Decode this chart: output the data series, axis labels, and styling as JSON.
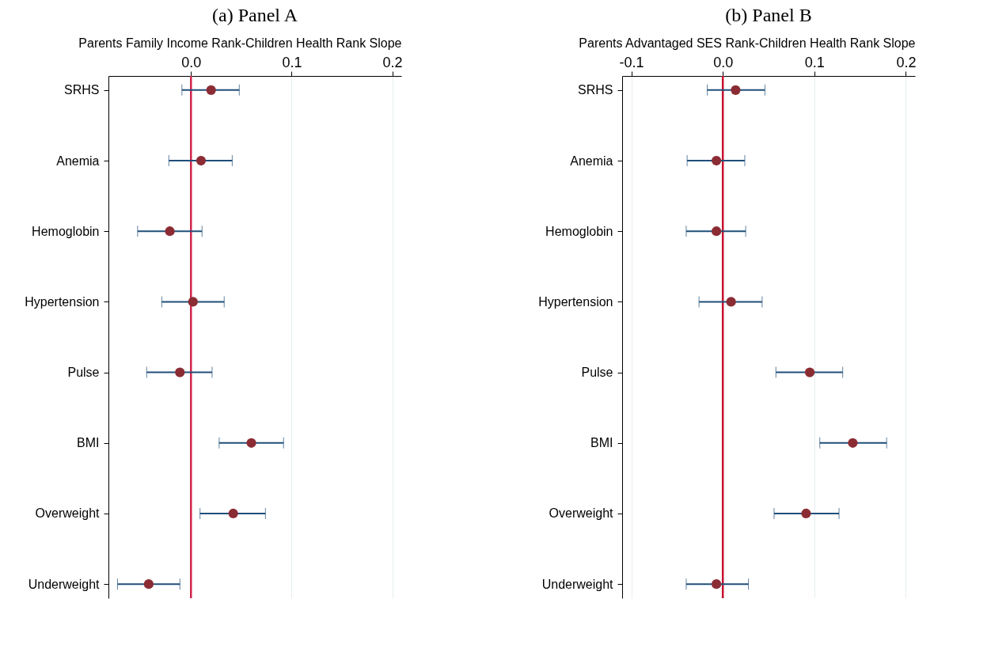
{
  "chart_data": [
    {
      "type": "scatter",
      "title": "(a) Panel A",
      "xlabel": "Parents Family Income Rank-Children Health Rank Slope",
      "categories": [
        "SRHS",
        "Anemia",
        "Hemoglobin",
        "Hypertension",
        "Pulse",
        "BMI",
        "Overweight",
        "Underweight"
      ],
      "orientation": "horizontal",
      "series": [
        {
          "color": "#8b2c34",
          "values": [
            0.02,
            0.01,
            -0.021,
            0.002,
            -0.011,
            0.06,
            0.042,
            -0.042
          ],
          "errors": [
            [
              -0.009,
              0.048
            ],
            [
              -0.022,
              0.041
            ],
            [
              -0.053,
              0.011
            ],
            [
              -0.029,
              0.033
            ],
            [
              -0.044,
              0.021
            ],
            [
              0.028,
              0.092
            ],
            [
              0.009,
              0.074
            ],
            [
              -0.073,
              -0.011
            ]
          ]
        }
      ],
      "xlim": [
        -0.082,
        0.209
      ],
      "xticks": [
        {
          "value": 0,
          "label": "0.0"
        },
        0.1,
        0.2
      ],
      "grid": "x",
      "marker": "circle",
      "ref_lines": [
        {
          "axis": "x",
          "value": 0,
          "color": "#d1244a"
        }
      ]
    },
    {
      "type": "scatter",
      "title": "(b) Panel B",
      "xlabel": "Parents Advantaged SES Rank-Children Health Rank Slope",
      "categories": [
        "SRHS",
        "Anemia",
        "Hemoglobin",
        "Hypertension",
        "Pulse",
        "BMI",
        "Overweight",
        "Underweight"
      ],
      "orientation": "horizontal",
      "series": [
        {
          "color": "#8b2c34",
          "values": [
            0.014,
            -0.007,
            -0.007,
            0.009,
            0.095,
            0.142,
            0.091,
            -0.007
          ],
          "errors": [
            [
              -0.017,
              0.046
            ],
            [
              -0.039,
              0.024
            ],
            [
              -0.04,
              0.025
            ],
            [
              -0.026,
              0.043
            ],
            [
              0.058,
              0.131
            ],
            [
              0.106,
              0.179
            ],
            [
              0.056,
              0.127
            ],
            [
              -0.04,
              0.028
            ]
          ]
        }
      ],
      "xlim": [
        -0.11,
        0.21
      ],
      "xticks": [
        -0.1,
        {
          "value": 0,
          "label": "0.0"
        },
        0.1,
        0.2
      ],
      "grid": "x",
      "marker": "circle",
      "ref_lines": [
        {
          "axis": "x",
          "value": 0,
          "color": "#c8102e"
        }
      ]
    }
  ]
}
